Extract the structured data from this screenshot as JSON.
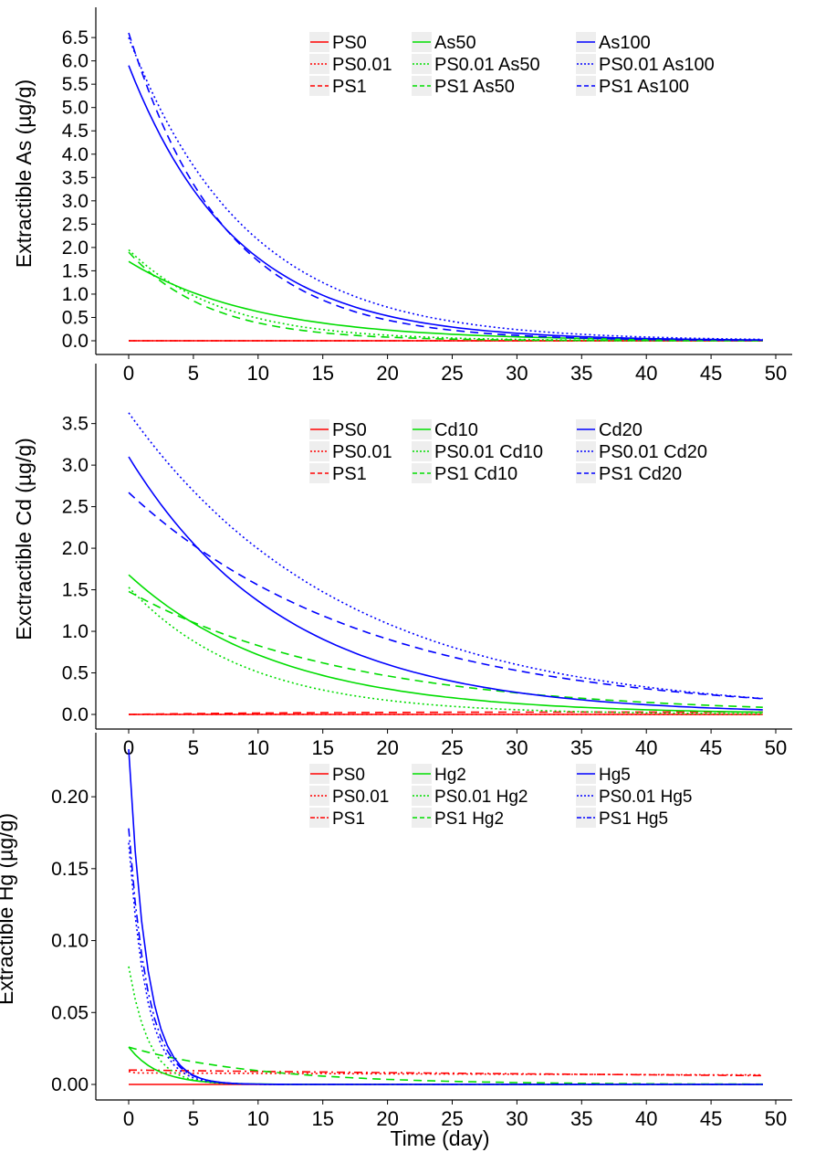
{
  "figure": {
    "xlabel": "Time (day)"
  },
  "chart_data": [
    {
      "type": "line",
      "ylabel": "Extractible As (µg/g)",
      "xlim": [
        0,
        49
      ],
      "ylim": [
        0,
        6.6
      ],
      "xticks": [
        "0",
        "5",
        "10",
        "15",
        "20",
        "25",
        "30",
        "35",
        "40",
        "45",
        "50"
      ],
      "yticks": [
        "0.0",
        "0.5",
        "1.0",
        "1.5",
        "2.0",
        "2.5",
        "3.0",
        "3.5",
        "4.0",
        "4.5",
        "5.0",
        "5.5",
        "6.0",
        "6.5"
      ],
      "legend": {
        "placement": "top-right",
        "columns": 3
      },
      "series": [
        {
          "name": "PS0",
          "color": "#ff0000",
          "dash": "solid",
          "model": {
            "a": 0,
            "k": 0.1
          }
        },
        {
          "name": "PS0.01",
          "color": "#ff0000",
          "dash": "dotted",
          "model": {
            "a": 0,
            "k": 0.1
          }
        },
        {
          "name": "PS1",
          "color": "#ff0000",
          "dash": "dashed",
          "model": {
            "a": 0,
            "k": 0.1
          }
        },
        {
          "name": "As50",
          "color": "#00dd00",
          "dash": "solid",
          "model": {
            "a": 1.7,
            "k": 0.1
          }
        },
        {
          "name": "PS0.01 As50",
          "color": "#00dd00",
          "dash": "dotted",
          "model": {
            "a": 1.95,
            "k": 0.14
          }
        },
        {
          "name": "PS1 As50",
          "color": "#00dd00",
          "dash": "dashed",
          "model": {
            "a": 1.9,
            "k": 0.16
          }
        },
        {
          "name": "As100",
          "color": "#0000ff",
          "dash": "solid",
          "model": {
            "a": 5.9,
            "k": 0.12
          }
        },
        {
          "name": "PS0.01 As100",
          "color": "#0000ff",
          "dash": "dotted",
          "model": {
            "a": 6.5,
            "k": 0.11
          }
        },
        {
          "name": "PS1 As100",
          "color": "#0000ff",
          "dash": "dashed",
          "model": {
            "a": 6.6,
            "k": 0.135
          }
        }
      ]
    },
    {
      "type": "line",
      "ylabel": "Exctractible Cd (µg/g)",
      "xlim": [
        0,
        49
      ],
      "ylim": [
        0,
        3.65
      ],
      "xticks": [
        "0",
        "5",
        "10",
        "15",
        "20",
        "25",
        "30",
        "35",
        "40",
        "45",
        "50"
      ],
      "yticks": [
        "0.0",
        "0.5",
        "1.0",
        "1.5",
        "2.0",
        "2.5",
        "3.0",
        "3.5"
      ],
      "legend": {
        "placement": "top-right",
        "columns": 3
      },
      "series": [
        {
          "name": "PS0",
          "color": "#ff0000",
          "dash": "solid",
          "model": {
            "a": 0,
            "k": 0.1
          }
        },
        {
          "name": "PS0.01",
          "color": "#ff0000",
          "dash": "dotted",
          "model": {
            "a": 0,
            "k": 0.1
          }
        },
        {
          "name": "PS1",
          "color": "#ff0000",
          "dash": "dashed",
          "model": {
            "a": 0,
            "k": 0.1,
            "rise": 0.03
          }
        },
        {
          "name": "Cd10",
          "color": "#00dd00",
          "dash": "solid",
          "model": {
            "a": 1.68,
            "k": 0.085
          }
        },
        {
          "name": "PS0.01 Cd10",
          "color": "#00dd00",
          "dash": "dotted",
          "model": {
            "a": 1.53,
            "k": 0.11
          }
        },
        {
          "name": "PS1 Cd10",
          "color": "#00dd00",
          "dash": "dashed",
          "model": {
            "a": 1.48,
            "k": 0.058
          }
        },
        {
          "name": "Cd20",
          "color": "#0000ff",
          "dash": "solid",
          "model": {
            "a": 3.1,
            "k": 0.082
          }
        },
        {
          "name": "PS0.01 Cd20",
          "color": "#0000ff",
          "dash": "dotted",
          "model": {
            "a": 3.63,
            "k": 0.06
          }
        },
        {
          "name": "PS1 Cd20",
          "color": "#0000ff",
          "dash": "dashed",
          "model": {
            "a": 2.67,
            "k": 0.054
          }
        }
      ]
    },
    {
      "type": "line",
      "ylabel": "Extractible Hg (µg/g)",
      "xlim": [
        0,
        49
      ],
      "ylim": [
        0,
        0.235
      ],
      "xticks": [
        "0",
        "5",
        "10",
        "15",
        "20",
        "25",
        "30",
        "35",
        "40",
        "45",
        "50"
      ],
      "yticks": [
        "0.00",
        "0.05",
        "0.10",
        "0.15",
        "0.20"
      ],
      "legend": {
        "placement": "top-right",
        "columns": 3
      },
      "series": [
        {
          "name": "PS0",
          "color": "#ff0000",
          "dash": "solid",
          "model": {
            "a": 0,
            "k": 0.1
          }
        },
        {
          "name": "PS0.01",
          "color": "#ff0000",
          "dash": "dotted",
          "model": {
            "a": 0.009,
            "k": 0.3,
            "floor": 0.008
          }
        },
        {
          "name": "PS1",
          "color": "#ff0000",
          "dash": "dashdot",
          "model": {
            "a": 0.01,
            "k": 0.01
          }
        },
        {
          "name": "Hg2",
          "color": "#00dd00",
          "dash": "solid",
          "model": {
            "a": 0.026,
            "k": 0.45
          }
        },
        {
          "name": "PS0.01 Hg2",
          "color": "#00dd00",
          "dash": "dotted",
          "model": {
            "a": 0.082,
            "k": 0.65
          }
        },
        {
          "name": "PS1 Hg2",
          "color": "#00dd00",
          "dash": "dashed",
          "model": {
            "a": 0.026,
            "k": 0.1
          }
        },
        {
          "name": "Hg5",
          "color": "#0000ff",
          "dash": "solid",
          "model": {
            "a": 0.233,
            "k": 0.72
          }
        },
        {
          "name": "PS0.01 Hg5",
          "color": "#0000ff",
          "dash": "dotted",
          "model": {
            "a": 0.168,
            "k": 0.72
          }
        },
        {
          "name": "PS1 Hg5",
          "color": "#0000ff",
          "dash": "dashdot",
          "model": {
            "a": 0.178,
            "k": 0.68
          }
        }
      ]
    }
  ]
}
